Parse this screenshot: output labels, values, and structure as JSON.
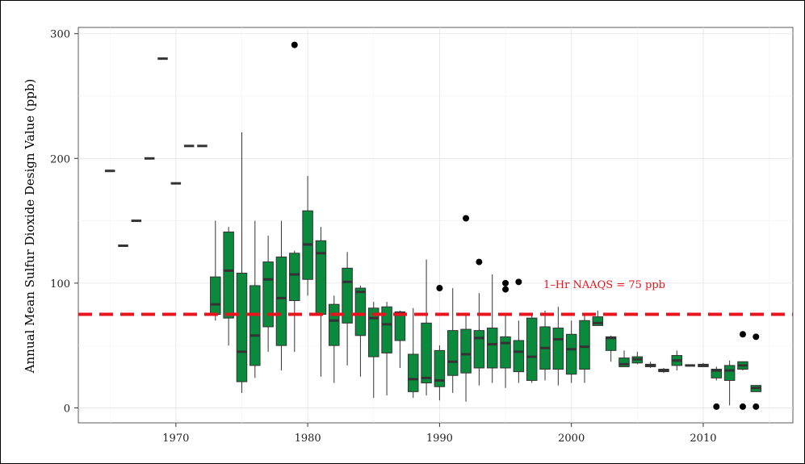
{
  "chart_data": {
    "type": "box",
    "title": "",
    "xlabel": "",
    "ylabel": "Annual Mean Sulfur Dioxide Design Value (ppb)",
    "xlim": [
      1962.6,
      2016.8
    ],
    "ylim": [
      -12,
      305
    ],
    "x_ticks": [
      1970,
      1980,
      1990,
      2000,
      2010
    ],
    "y_ticks": [
      0,
      100,
      200,
      300
    ],
    "grid": true,
    "box_color": "#0a8a3c",
    "median_color": "#333333",
    "reference_line": {
      "value": 75,
      "label": "1–Hr NAAQS = 75 ppb",
      "color": "#e8141e",
      "style": "dashed"
    },
    "boxes": [
      {
        "year": 1965,
        "lo": 190,
        "q1": 190,
        "med": 190,
        "q3": 190,
        "hi": 190
      },
      {
        "year": 1966,
        "lo": 130,
        "q1": 130,
        "med": 130,
        "q3": 130,
        "hi": 130
      },
      {
        "year": 1967,
        "lo": 150,
        "q1": 150,
        "med": 150,
        "q3": 150,
        "hi": 150
      },
      {
        "year": 1968,
        "lo": 200,
        "q1": 200,
        "med": 200,
        "q3": 200,
        "hi": 200
      },
      {
        "year": 1969,
        "lo": 280,
        "q1": 280,
        "med": 280,
        "q3": 280,
        "hi": 280
      },
      {
        "year": 1970,
        "lo": 180,
        "q1": 180,
        "med": 180,
        "q3": 180,
        "hi": 180
      },
      {
        "year": 1971,
        "lo": 210,
        "q1": 210,
        "med": 210,
        "q3": 210,
        "hi": 210
      },
      {
        "year": 1972,
        "lo": 210,
        "q1": 210,
        "med": 210,
        "q3": 210,
        "hi": 210
      },
      {
        "year": 1973,
        "lo": 70,
        "q1": 75,
        "med": 83,
        "q3": 105,
        "hi": 150
      },
      {
        "year": 1974,
        "lo": 50,
        "q1": 72,
        "med": 110,
        "q3": 141,
        "hi": 145
      },
      {
        "year": 1975,
        "lo": 12,
        "q1": 21,
        "med": 45,
        "q3": 108,
        "hi": 221
      },
      {
        "year": 1976,
        "lo": 24,
        "q1": 34,
        "med": 58,
        "q3": 98,
        "hi": 150
      },
      {
        "year": 1977,
        "lo": 45,
        "q1": 65,
        "med": 103,
        "q3": 117,
        "hi": 138
      },
      {
        "year": 1978,
        "lo": 30,
        "q1": 50,
        "med": 88,
        "q3": 121,
        "hi": 150
      },
      {
        "year": 1979,
        "lo": 45,
        "q1": 86,
        "med": 107,
        "q3": 124,
        "hi": 126,
        "outliers": [
          291
        ]
      },
      {
        "year": 1980,
        "lo": 90,
        "q1": 103,
        "med": 131,
        "q3": 158,
        "hi": 186
      },
      {
        "year": 1981,
        "lo": 25,
        "q1": 75,
        "med": 124,
        "q3": 134,
        "hi": 145
      },
      {
        "year": 1982,
        "lo": 20,
        "q1": 50,
        "med": 70,
        "q3": 83,
        "hi": 90
      },
      {
        "year": 1983,
        "lo": 34,
        "q1": 68,
        "med": 101,
        "q3": 112,
        "hi": 125
      },
      {
        "year": 1984,
        "lo": 25,
        "q1": 58,
        "med": 93,
        "q3": 96,
        "hi": 98
      },
      {
        "year": 1985,
        "lo": 8,
        "q1": 41,
        "med": 72,
        "q3": 80,
        "hi": 85
      },
      {
        "year": 1986,
        "lo": 10,
        "q1": 44,
        "med": 67,
        "q3": 81,
        "hi": 85
      },
      {
        "year": 1987,
        "lo": 32,
        "q1": 54,
        "med": 76,
        "q3": 77,
        "hi": 78
      },
      {
        "year": 1988,
        "lo": 8,
        "q1": 13,
        "med": 23,
        "q3": 43,
        "hi": 80
      },
      {
        "year": 1989,
        "lo": 10,
        "q1": 20,
        "med": 24,
        "q3": 68,
        "hi": 119
      },
      {
        "year": 1990,
        "lo": 6,
        "q1": 17,
        "med": 22,
        "q3": 46,
        "hi": 50,
        "outliers": [
          96
        ]
      },
      {
        "year": 1991,
        "lo": 12,
        "q1": 26,
        "med": 37,
        "q3": 62,
        "hi": 96
      },
      {
        "year": 1992,
        "lo": 5,
        "q1": 28,
        "med": 43,
        "q3": 63,
        "hi": 75,
        "outliers": [
          152
        ]
      },
      {
        "year": 1993,
        "lo": 18,
        "q1": 32,
        "med": 56,
        "q3": 62,
        "hi": 92,
        "outliers": [
          117
        ]
      },
      {
        "year": 1994,
        "lo": 20,
        "q1": 32,
        "med": 51,
        "q3": 64,
        "hi": 107
      },
      {
        "year": 1995,
        "lo": 16,
        "q1": 32,
        "med": 52,
        "q3": 57,
        "hi": 74,
        "outliers": [
          95,
          100
        ]
      },
      {
        "year": 1996,
        "lo": 20,
        "q1": 29,
        "med": 45,
        "q3": 54,
        "hi": 70,
        "outliers": [
          101
        ]
      },
      {
        "year": 1997,
        "lo": 20,
        "q1": 22,
        "med": 41,
        "q3": 72,
        "hi": 76
      },
      {
        "year": 1998,
        "lo": 22,
        "q1": 31,
        "med": 48,
        "q3": 65,
        "hi": 78
      },
      {
        "year": 1999,
        "lo": 18,
        "q1": 31,
        "med": 55,
        "q3": 64,
        "hi": 81
      },
      {
        "year": 2000,
        "lo": 20,
        "q1": 27,
        "med": 47,
        "q3": 59,
        "hi": 70
      },
      {
        "year": 2001,
        "lo": 20,
        "q1": 31,
        "med": 49,
        "q3": 70,
        "hi": 75
      },
      {
        "year": 2002,
        "lo": 66,
        "q1": 66,
        "med": 68,
        "q3": 73,
        "hi": 78
      },
      {
        "year": 2003,
        "lo": 37,
        "q1": 46,
        "med": 56,
        "q3": 57,
        "hi": 58
      },
      {
        "year": 2004,
        "lo": 33,
        "q1": 33,
        "med": 35,
        "q3": 40,
        "hi": 46
      },
      {
        "year": 2005,
        "lo": 35,
        "q1": 36,
        "med": 39,
        "q3": 41,
        "hi": 45
      },
      {
        "year": 2006,
        "lo": 32,
        "q1": 33,
        "med": 34,
        "q3": 35,
        "hi": 37
      },
      {
        "year": 2007,
        "lo": 28,
        "q1": 29,
        "med": 30,
        "q3": 31,
        "hi": 32
      },
      {
        "year": 2008,
        "lo": 30,
        "q1": 34,
        "med": 38,
        "q3": 42,
        "hi": 46
      },
      {
        "year": 2009,
        "lo": 34,
        "q1": 34,
        "med": 34,
        "q3": 34,
        "hi": 34
      },
      {
        "year": 2010,
        "lo": 33,
        "q1": 33,
        "med": 34,
        "q3": 35,
        "hi": 36
      },
      {
        "year": 2011,
        "lo": 22,
        "q1": 24,
        "med": 30,
        "q3": 31,
        "hi": 33,
        "outliers": [
          1
        ]
      },
      {
        "year": 2012,
        "lo": 2,
        "q1": 22,
        "med": 30,
        "q3": 34,
        "hi": 38
      },
      {
        "year": 2013,
        "lo": 30,
        "q1": 31,
        "med": 34,
        "q3": 37,
        "hi": 37,
        "outliers": [
          1,
          59
        ]
      },
      {
        "year": 2014,
        "lo": 13,
        "q1": 13,
        "med": 16,
        "q3": 18,
        "hi": 18,
        "outliers": [
          1,
          57
        ]
      }
    ]
  }
}
